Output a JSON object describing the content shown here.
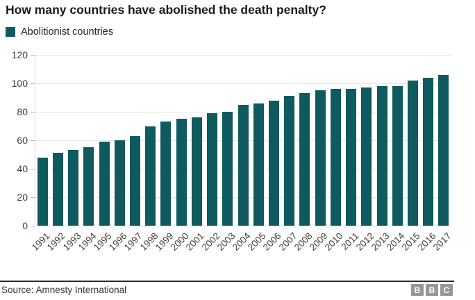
{
  "header": {
    "title": "How many countries have abolished the death penalty?"
  },
  "legend": {
    "label": "Abolitionist countries",
    "swatch_color": "#0f5a5e"
  },
  "chart_data": {
    "type": "bar",
    "title": "How many countries have abolished the death penalty?",
    "series_name": "Abolitionist countries",
    "categories": [
      "1991",
      "1992",
      "1993",
      "1994",
      "1995",
      "1996",
      "1997",
      "1998",
      "1999",
      "2000",
      "2001",
      "2002",
      "2003",
      "2004",
      "2005",
      "2006",
      "2007",
      "2008",
      "2009",
      "2010",
      "2011",
      "2012",
      "2013",
      "2014",
      "2015",
      "2016",
      "2017"
    ],
    "values": [
      48,
      51,
      53,
      55,
      59,
      60,
      63,
      70,
      73,
      75,
      76,
      79,
      80,
      85,
      86,
      88,
      91,
      93,
      95,
      96,
      96,
      97,
      98,
      98,
      102,
      104,
      106
    ],
    "xlabel": "",
    "ylabel": "",
    "ylim": [
      0,
      120
    ],
    "yticks": [
      0,
      20,
      40,
      60,
      80,
      100,
      120
    ],
    "bar_color": "#0f5a5e",
    "grid": true,
    "legend_position": "top-left"
  },
  "footer": {
    "source": "Source: Amnesty International",
    "logo_letters": [
      "B",
      "B",
      "C"
    ]
  }
}
